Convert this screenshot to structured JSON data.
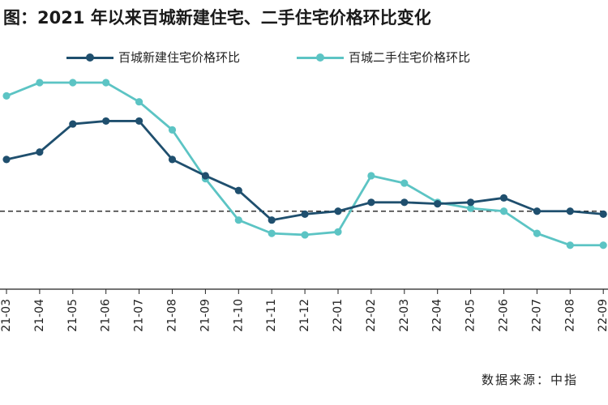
{
  "title": "图：2021 年以来百城新建住宅、二手住宅价格环比变化",
  "source": "数据来源：中指",
  "colors": {
    "new": "#1f4f6e",
    "second": "#5cc4c4",
    "axis": "#222222"
  },
  "chart_data": {
    "type": "line",
    "title": "图：2021 年以来百城新建住宅、二手住宅价格环比变化",
    "categories": [
      "21-03",
      "21-04",
      "21-05",
      "21-06",
      "21-07",
      "21-08",
      "21-09",
      "21-10",
      "21-11",
      "21-12",
      "22-01",
      "22-02",
      "22-03",
      "22-04",
      "22-05",
      "22-06",
      "22-07",
      "22-08",
      "22-09"
    ],
    "series": [
      {
        "name": "百城新建住宅价格环比",
        "color": "#1f4f6e",
        "values": [
          0.35,
          0.4,
          0.59,
          0.61,
          0.61,
          0.35,
          0.24,
          0.14,
          -0.06,
          -0.02,
          0.0,
          0.06,
          0.06,
          0.05,
          0.06,
          0.09,
          0.0,
          0.0,
          -0.02
        ]
      },
      {
        "name": "百城二手住宅价格环比",
        "color": "#5cc4c4",
        "values": [
          0.78,
          0.87,
          0.87,
          0.87,
          0.74,
          0.55,
          0.22,
          -0.06,
          -0.15,
          -0.16,
          -0.14,
          0.24,
          0.19,
          0.06,
          0.02,
          0.0,
          -0.15,
          -0.23,
          -0.23
        ]
      }
    ],
    "ylim": [
      -0.5,
      1.1
    ],
    "baseline": 0,
    "xlabel": "",
    "ylabel": "",
    "legend": "top"
  }
}
